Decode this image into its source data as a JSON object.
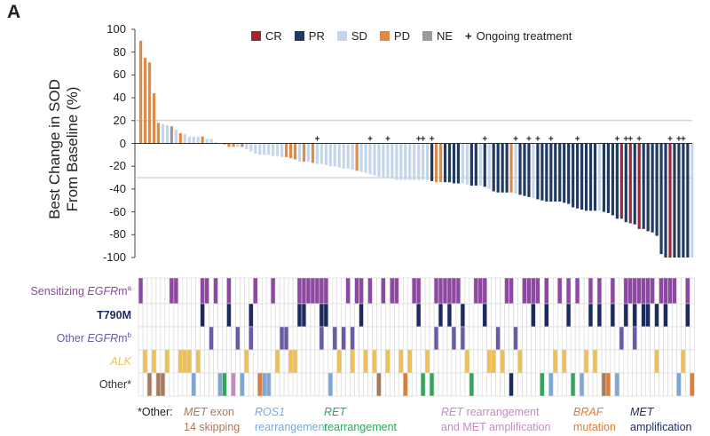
{
  "panel_label": "A",
  "chart_data": [
    {
      "type": "bar",
      "subtype": "waterfall",
      "ylabel_lines": [
        "Best Change in SOD",
        "From Baseline (%)"
      ],
      "ylim": [
        -100,
        100
      ],
      "yticks": [
        100,
        80,
        60,
        40,
        20,
        0,
        -20,
        -40,
        -60,
        -80,
        -100
      ],
      "reference_lines": [
        20,
        -30
      ],
      "grid": false,
      "legend": {
        "placement": "top",
        "items": [
          {
            "key": "C",
            "label": "CR",
            "color": "#a3232f"
          },
          {
            "key": "R",
            "label": "PR",
            "color": "#213a63"
          },
          {
            "key": "S",
            "label": "SD",
            "color": "#c6d6ea"
          },
          {
            "key": "P",
            "label": "PD",
            "color": "#e08a45"
          },
          {
            "key": "N",
            "label": "NE",
            "color": "#9a9a9a"
          }
        ],
        "ongoing_label": "Ongoing treatment",
        "ongoing_marker": "+"
      },
      "values": [
        90,
        75,
        71,
        44,
        18,
        17,
        16,
        15,
        12,
        9,
        8,
        6,
        6,
        6,
        6,
        4,
        4,
        1,
        0,
        -1,
        -3,
        -3,
        -3,
        -3,
        -5,
        -7,
        -9,
        -10,
        -10,
        -10,
        -11,
        -11,
        -12,
        -12,
        -13,
        -14,
        -16,
        -16,
        -16,
        -17,
        -18,
        -18,
        -19,
        -20,
        -20,
        -21,
        -22,
        -22,
        -23,
        -24,
        -25,
        -26,
        -27,
        -28,
        -29,
        -30,
        -30,
        -31,
        -32,
        -32,
        -32,
        -32,
        -32,
        -32,
        -32,
        -32,
        -33,
        -34,
        -34,
        -34,
        -34,
        -35,
        -35,
        -35,
        -36,
        -37,
        -37,
        -37,
        -38,
        -40,
        -42,
        -43,
        -43,
        -43,
        -43,
        -44,
        -45,
        -46,
        -47,
        -48,
        -49,
        -50,
        -51,
        -51,
        -51,
        -51,
        -52,
        -53,
        -56,
        -57,
        -58,
        -59,
        -59,
        -59,
        -59,
        -60,
        -61,
        -63,
        -66,
        -66,
        -69,
        -70,
        -71,
        -75,
        -75,
        -77,
        -78,
        -81,
        -97,
        -100,
        -100,
        -100,
        -100,
        -100,
        -100,
        -100
      ],
      "response": "PPPPPSSNSPSSSSPSSSSPPPSNSSSSSSSSSPPPSPSPSSSSSSSSSPSSSSSSSSSSSSSSSSRPPRRRRSSRRSRSRRRRPSRRRSRRRRRRRRRRRRRRSRRRRCRCRCRRRRRRCRRRRS",
      "ongoing_indices": [
        40,
        52,
        56,
        63,
        64,
        66,
        78,
        85,
        88,
        90,
        93,
        99,
        108,
        110,
        111,
        113,
        120,
        122,
        123
      ]
    },
    {
      "type": "heatmap",
      "rows": [
        {
          "label_parts": [
            "Sensitizing ",
            "EGFR",
            "m",
            "a"
          ],
          "color": "#8e48a3",
          "indices": [
            0,
            7,
            8,
            14,
            15,
            17,
            20,
            26,
            30,
            36,
            37,
            38,
            39,
            40,
            41,
            42,
            47,
            49,
            50,
            52,
            55,
            57,
            58,
            62,
            63,
            67,
            68,
            69,
            70,
            71,
            72,
            76,
            77,
            78,
            83,
            84,
            87,
            88,
            89,
            90,
            92,
            95,
            97,
            99,
            102,
            104,
            107,
            110,
            111,
            112,
            113,
            114,
            115,
            116,
            118,
            119,
            120,
            121,
            124
          ]
        },
        {
          "label_parts": [
            "T790M",
            "",
            "",
            ""
          ],
          "color": "#1c2a5e",
          "indices": [
            14,
            20,
            25,
            36,
            37,
            41,
            42,
            50,
            63,
            68,
            70,
            73,
            78,
            89,
            92,
            97,
            102,
            104,
            107,
            110,
            112,
            114,
            115,
            117,
            119,
            124
          ]
        },
        {
          "label_parts": [
            "Other ",
            "EGFR",
            "m",
            "b"
          ],
          "color": "#6b5aa8",
          "indices": [
            16,
            22,
            25,
            32,
            33,
            41,
            44,
            46,
            48,
            67,
            71,
            73,
            81,
            85,
            109,
            112
          ]
        },
        {
          "label_parts": [
            "",
            "ALK",
            "",
            ""
          ],
          "color": "#eec055",
          "indices": [
            1,
            3,
            6,
            9,
            10,
            11,
            13,
            24,
            31,
            34,
            35,
            45,
            48,
            51,
            53,
            56,
            59,
            61,
            65,
            74,
            79,
            80,
            82,
            86,
            94,
            96,
            101,
            103,
            117,
            123
          ]
        },
        {
          "label_parts": [
            "Other*",
            "",
            "",
            ""
          ],
          "color": "#333333",
          "categories": [
            {
              "key": "met_exon14",
              "color": "#a8795a",
              "indices": [
                2,
                4,
                5,
                54,
                105
              ]
            },
            {
              "key": "ros1",
              "color": "#7fa7d6",
              "indices": [
                12,
                18,
                23,
                28,
                29,
                43,
                93,
                100,
                108,
                122
              ]
            },
            {
              "key": "ret",
              "color": "#2fa65a",
              "indices": [
                19,
                64,
                66,
                75,
                91,
                98
              ]
            },
            {
              "key": "ret_met",
              "color": "#c58ac6",
              "indices": [
                21
              ]
            },
            {
              "key": "braf",
              "color": "#e07b39",
              "indices": [
                27,
                60,
                106,
                125
              ]
            },
            {
              "key": "met_amp",
              "color": "#1f2d5c",
              "indices": [
                84
              ]
            }
          ]
        }
      ]
    }
  ],
  "footnote": {
    "prefix": "*Other:",
    "items": [
      {
        "italic": "MET",
        "line1": " exon",
        "line2": "14 skipping",
        "color": "#a8795a"
      },
      {
        "italic": "ROS1",
        "line1": "",
        "line2": "rearrangement",
        "color": "#7fa7d6"
      },
      {
        "italic": "RET",
        "line1": "",
        "line2": "rearrangement",
        "color": "#2fa65a"
      },
      {
        "italic": "RET",
        "line1": " rearrangement",
        "line2": "and MET amplification",
        "color": "#c58ac6"
      },
      {
        "italic": "BRAF",
        "line1": "",
        "line2": "mutation",
        "color": "#e07b39"
      },
      {
        "italic": "MET",
        "line1": "",
        "line2": "amplification",
        "color": "#1f2d5c"
      }
    ]
  }
}
